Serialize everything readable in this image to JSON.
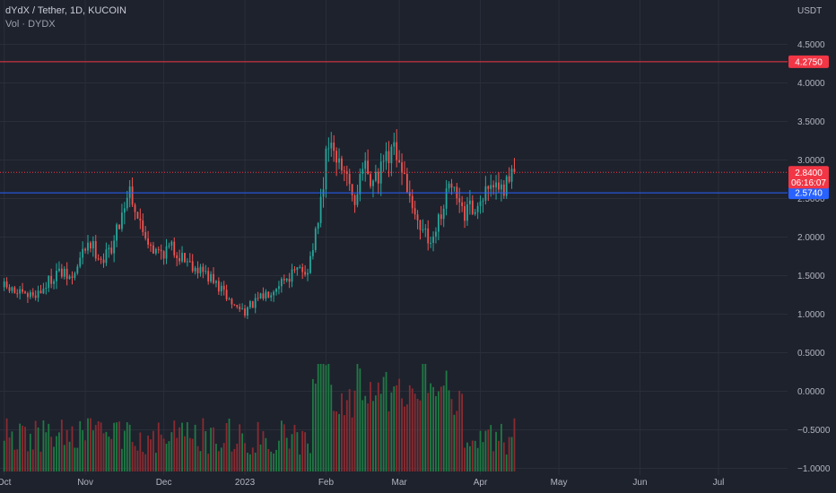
{
  "header": {
    "title": "dYdX / Tether, 1D, KUCOIN",
    "volume_label": "Vol · DYDX"
  },
  "colors": {
    "background": "#1e222d",
    "grid": "#2a2e39",
    "up": "#26a69a",
    "down": "#ef5350",
    "vol_up": "#1f7a44",
    "vol_down": "#8a2b31",
    "resistance": "#f23645",
    "support": "#2962ff",
    "price_line": "#f23645"
  },
  "chart_data": {
    "type": "candlestick",
    "currency_label": "USDT",
    "y_ticks": [
      "4.5000",
      "4.0000",
      "3.5000",
      "3.0000",
      "2.5000",
      "2.0000",
      "1.5000",
      "1.0000",
      "0.5000",
      "0.0000",
      "−0.5000",
      "−1.0000"
    ],
    "y_tick_values": [
      4.5,
      4.0,
      3.5,
      3.0,
      2.5,
      2.0,
      1.5,
      1.0,
      0.5,
      0.0,
      -0.5,
      -1.0
    ],
    "y_range": [
      -1.0,
      4.9
    ],
    "x_ticks": [
      {
        "label": "Oct",
        "day": 0
      },
      {
        "label": "Nov",
        "day": 31
      },
      {
        "label": "Dec",
        "day": 61
      },
      {
        "label": "2023",
        "day": 92
      },
      {
        "label": "Feb",
        "day": 123
      },
      {
        "label": "Mar",
        "day": 151
      },
      {
        "label": "Apr",
        "day": 182
      },
      {
        "label": "May",
        "day": 212
      },
      {
        "label": "Jun",
        "day": 243
      },
      {
        "label": "Jul",
        "day": 273
      }
    ],
    "x_range_days": [
      -1.6,
      299.4
    ],
    "candle_count": 196,
    "anchors": [
      [
        0,
        1.35
      ],
      [
        8,
        1.22
      ],
      [
        14,
        1.3
      ],
      [
        20,
        1.55
      ],
      [
        26,
        1.45
      ],
      [
        32,
        1.95
      ],
      [
        38,
        1.7
      ],
      [
        42,
        1.95
      ],
      [
        46,
        2.45
      ],
      [
        48,
        2.65
      ],
      [
        52,
        2.15
      ],
      [
        58,
        1.8
      ],
      [
        64,
        1.85
      ],
      [
        70,
        1.7
      ],
      [
        76,
        1.55
      ],
      [
        82,
        1.35
      ],
      [
        88,
        1.1
      ],
      [
        92,
        1.05
      ],
      [
        98,
        1.2
      ],
      [
        106,
        1.45
      ],
      [
        112,
        1.55
      ],
      [
        116,
        1.6
      ],
      [
        120,
        2.15
      ],
      [
        124,
        3.3
      ],
      [
        128,
        2.9
      ],
      [
        134,
        2.5
      ],
      [
        138,
        2.9
      ],
      [
        142,
        2.7
      ],
      [
        146,
        2.95
      ],
      [
        150,
        3.1
      ],
      [
        154,
        2.55
      ],
      [
        160,
        2.1
      ],
      [
        164,
        1.9
      ],
      [
        168,
        2.5
      ],
      [
        172,
        2.6
      ],
      [
        176,
        2.3
      ],
      [
        182,
        2.5
      ],
      [
        186,
        2.55
      ],
      [
        191,
        2.6
      ],
      [
        195,
        2.9
      ]
    ],
    "volume_scale_max": 0.45,
    "levels": [
      {
        "name": "resistance",
        "value": 4.275,
        "label": "4.2750"
      },
      {
        "name": "support",
        "value": 2.574,
        "label": "2.5740"
      }
    ],
    "last_price": {
      "value": 2.84,
      "label": "2.8400",
      "countdown": "06:16:07"
    }
  }
}
